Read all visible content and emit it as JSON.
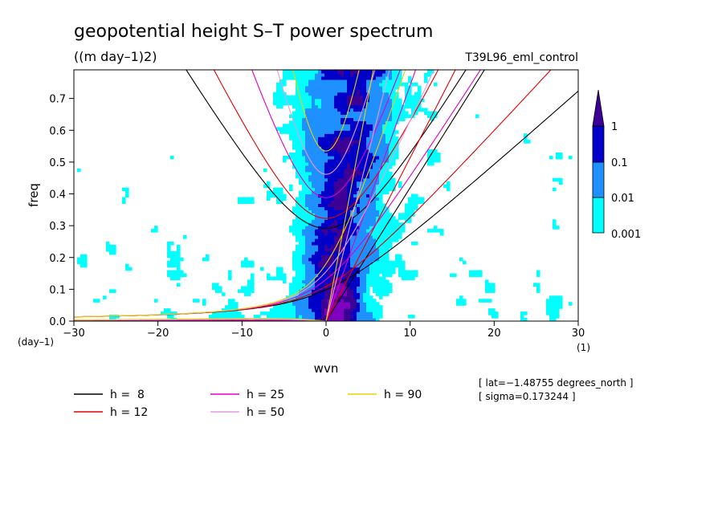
{
  "chart_data": {
    "type": "heatmap",
    "title": "geopotential height S–T power spectrum",
    "subtitle": "((m day–1)2)",
    "run_label": "T39L96_eml_control",
    "xlabel": "wvn",
    "ylabel": "freq",
    "x_unit": "(1)",
    "y_unit": "(day–1)",
    "xlim": [
      -30,
      30
    ],
    "ylim": [
      0,
      0.79
    ],
    "x_ticks": [
      -30,
      -20,
      -10,
      0,
      10,
      20,
      30
    ],
    "x_tick_labels": [
      "−30",
      "−20",
      "−10",
      "0",
      "10",
      "20",
      "30"
    ],
    "y_ticks": [
      0,
      0.1,
      0.2,
      0.3,
      0.4,
      0.5,
      0.6,
      0.7
    ],
    "y_tick_labels": [
      "0.0",
      "0.1",
      "0.2",
      "0.3",
      "0.4",
      "0.5",
      "0.6",
      "0.7"
    ],
    "colorbar": {
      "levels": [
        0.001,
        0.01,
        0.1,
        1
      ],
      "labels": [
        "0.001",
        "0.01",
        "0.1",
        "1"
      ],
      "colors": [
        "#00ffff",
        "#1e90ff",
        "#0000c8",
        "#3c0096"
      ]
    },
    "dispersion_curves": [
      {
        "name": "h =  8",
        "h": 8,
        "color": "#000000"
      },
      {
        "name": "h = 12",
        "h": 12,
        "color": "#e00000"
      },
      {
        "name": "h = 25",
        "h": 25,
        "color": "#e000c8"
      },
      {
        "name": "h = 50",
        "h": 50,
        "color": "#e69be6"
      },
      {
        "name": "h = 90",
        "h": 90,
        "color": "#e6d200"
      }
    ],
    "annotations": [
      "[ lat=−1.48755 degrees_north ]",
      "[ sigma=0.173244 ]"
    ]
  },
  "colors": {
    "band1": "#00ffff",
    "band2": "#1e90ff",
    "band3": "#0000c8",
    "band4": "#3c0096",
    "band5": "#8000c0"
  }
}
